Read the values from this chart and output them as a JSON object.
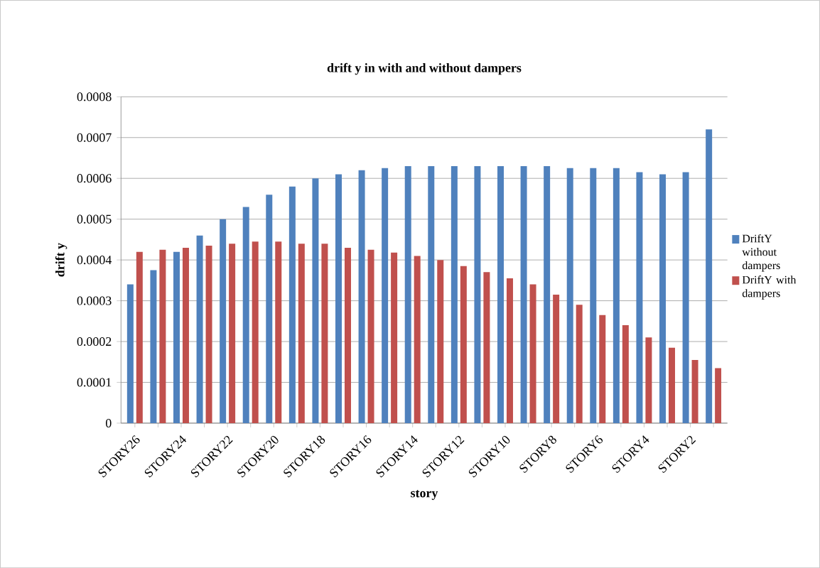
{
  "chart_data": {
    "type": "bar",
    "title": "**drift y in with and without dampers**",
    "xlabel": "**story**",
    "ylabel": "**drift y**",
    "categories": [
      "STORY26",
      null,
      "STORY24",
      null,
      "STORY22",
      null,
      "STORY20",
      null,
      "STORY18",
      null,
      "STORY16",
      null,
      "STORY14",
      null,
      "STORY12",
      null,
      "STORY10",
      null,
      "STORY8",
      null,
      "STORY6",
      null,
      "STORY4",
      null,
      "STORY2",
      null
    ],
    "series": [
      {
        "name": "DriftY without dampers",
        "color": "#4f81bd",
        "values": [
          0.00034,
          0.000375,
          0.00042,
          0.00046,
          0.0005,
          0.00053,
          0.00056,
          0.00058,
          0.0006,
          0.00061,
          0.00062,
          0.000625,
          0.00063,
          0.00063,
          0.00063,
          0.00063,
          0.00063,
          0.00063,
          0.00063,
          0.000625,
          0.000625,
          0.000625,
          0.000615,
          0.00061,
          0.000615,
          0.00072
        ]
      },
      {
        "name": "DriftY with dampers",
        "color": "#c0504d",
        "values": [
          0.00042,
          0.000425,
          0.00043,
          0.000435,
          0.00044,
          0.000445,
          0.000445,
          0.00044,
          0.00044,
          0.00043,
          0.000425,
          0.000418,
          0.00041,
          0.0004,
          0.000385,
          0.00037,
          0.000355,
          0.00034,
          0.000315,
          0.00029,
          0.000265,
          0.00024,
          0.00021,
          0.000185,
          0.000155,
          0.000135
        ]
      }
    ],
    "ylim": [
      0,
      0.0008
    ],
    "yticks": [
      0,
      0.0001,
      0.0002,
      0.0003,
      0.0004,
      0.0005,
      0.0006,
      0.0007,
      0.0008
    ],
    "grid": "y",
    "legend": "right"
  }
}
